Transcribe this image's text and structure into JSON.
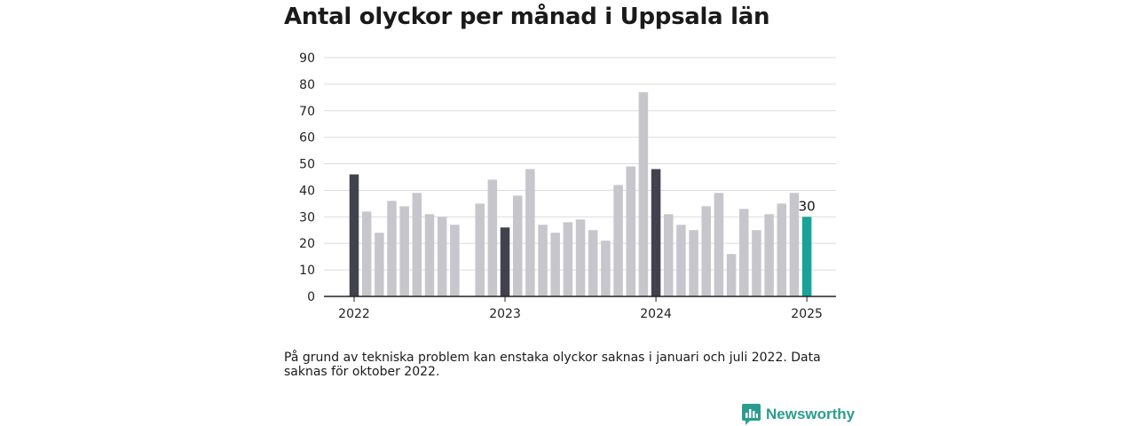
{
  "title": "Antal olyckor per månad i Uppsala län",
  "note": "På grund av tekniska problem kan enstaka olyckor saknas i januari och juli 2022. Data saknas för oktober 2022.",
  "brand": {
    "name": "Newsworthy",
    "icon": "bar-chart-logo-icon",
    "color": "#2a9d8f"
  },
  "colors": {
    "january": "#42424e",
    "default": "#c6c6cc",
    "latest": "#17a398",
    "axis": "#222222",
    "grid": "#dddddd"
  },
  "chart_data": {
    "type": "bar",
    "title": "Antal olyckor per månad i Uppsala län",
    "xlabel": "",
    "ylabel": "",
    "ylim": [
      0,
      90
    ],
    "yticks": [
      "0",
      "10",
      "20",
      "30",
      "40",
      "50",
      "60",
      "70",
      "80",
      "90"
    ],
    "xticks": [
      "2022",
      "2023",
      "2024",
      "2025"
    ],
    "grid": true,
    "categories": [
      "2022-01",
      "2022-02",
      "2022-03",
      "2022-04",
      "2022-05",
      "2022-06",
      "2022-07",
      "2022-08",
      "2022-09",
      "2022-10",
      "2022-11",
      "2022-12",
      "2023-01",
      "2023-02",
      "2023-03",
      "2023-04",
      "2023-05",
      "2023-06",
      "2023-07",
      "2023-08",
      "2023-09",
      "2023-10",
      "2023-11",
      "2023-12",
      "2024-01",
      "2024-02",
      "2024-03",
      "2024-04",
      "2024-05",
      "2024-06",
      "2024-07",
      "2024-08",
      "2024-09",
      "2024-10",
      "2024-11",
      "2024-12",
      "2025-01"
    ],
    "values": [
      46,
      32,
      24,
      36,
      34,
      39,
      31,
      30,
      27,
      null,
      35,
      44,
      26,
      38,
      48,
      27,
      24,
      28,
      29,
      25,
      21,
      42,
      49,
      77,
      48,
      31,
      27,
      25,
      34,
      39,
      16,
      33,
      25,
      31,
      35,
      39,
      30
    ],
    "annotations": [
      {
        "category": "2025-01",
        "text": "30"
      }
    ]
  }
}
